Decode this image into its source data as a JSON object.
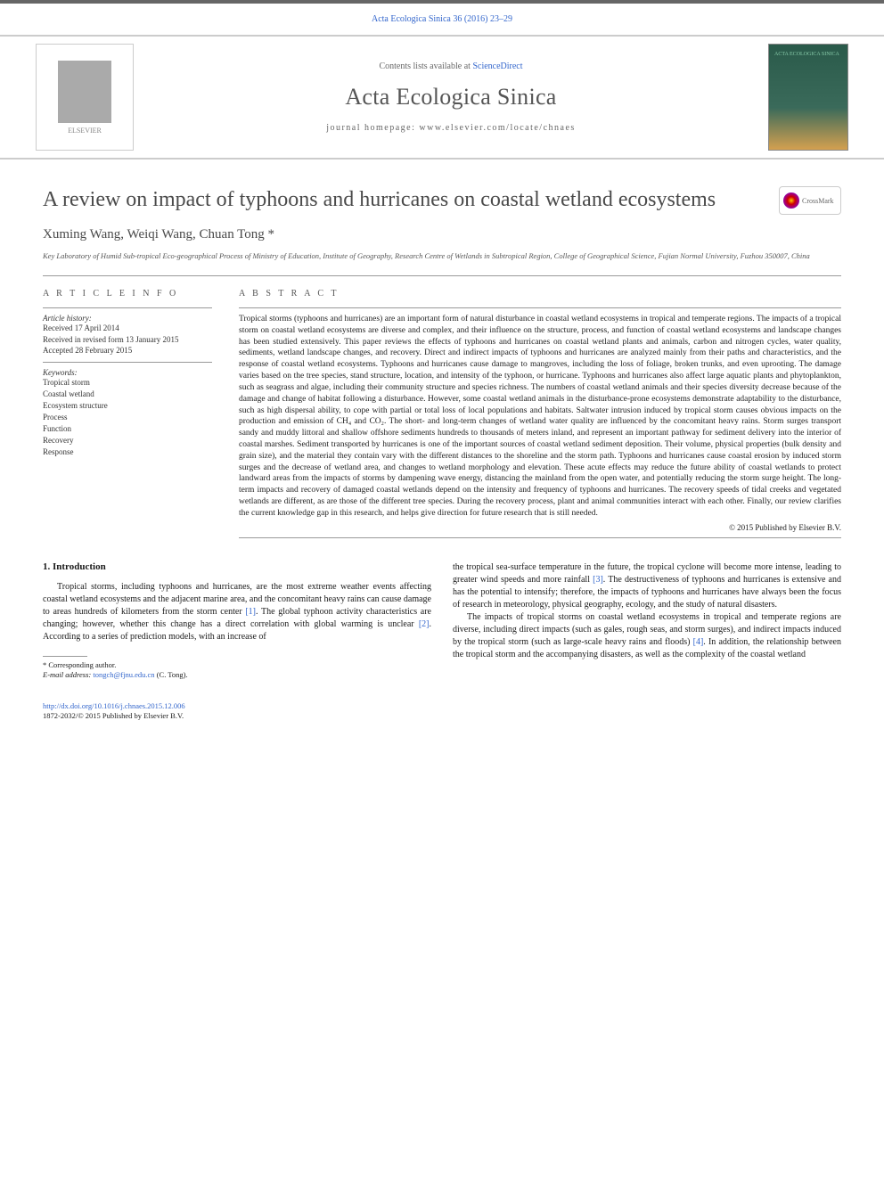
{
  "header": {
    "citation": "Acta Ecologica Sinica 36 (2016) 23–29",
    "contents_prefix": "Contents lists available at ",
    "contents_link": "ScienceDirect",
    "journal_name": "Acta Ecologica Sinica",
    "homepage_label": "journal homepage: www.elsevier.com/locate/chnaes",
    "elsevier": "ELSEVIER",
    "cover_text": "ACTA ECOLOGICA SINICA"
  },
  "article": {
    "title": "A review on impact of typhoons and hurricanes on coastal wetland ecosystems",
    "crossmark": "CrossMark",
    "authors": "Xuming Wang, Weiqi Wang, Chuan Tong *",
    "affiliation": "Key Laboratory of Humid Sub-tropical Eco-geographical Process of Ministry of Education, Institute of Geography, Research Centre of Wetlands in Subtropical Region, College of Geographical Science, Fujian Normal University, Fuzhou 350007, China"
  },
  "info": {
    "heading": "A R T I C L E   I N F O",
    "history_label": "Article history:",
    "received": "Received 17 April 2014",
    "revised": "Received in revised form 13 January 2015",
    "accepted": "Accepted 28 February 2015",
    "keywords_label": "Keywords:",
    "keywords": [
      "Tropical storm",
      "Coastal wetland",
      "Ecosystem structure",
      "Process",
      "Function",
      "Recovery",
      "Response"
    ]
  },
  "abstract": {
    "heading": "A B S T R A C T",
    "text": "Tropical storms (typhoons and hurricanes) are an important form of natural disturbance in coastal wetland ecosystems in tropical and temperate regions. The impacts of a tropical storm on coastal wetland ecosystems are diverse and complex, and their influence on the structure, process, and function of coastal wetland ecosystems and landscape changes has been studied extensively. This paper reviews the effects of typhoons and hurricanes on coastal wetland plants and animals, carbon and nitrogen cycles, water quality, sediments, wetland landscape changes, and recovery. Direct and indirect impacts of typhoons and hurricanes are analyzed mainly from their paths and characteristics, and the response of coastal wetland ecosystems. Typhoons and hurricanes cause damage to mangroves, including the loss of foliage, broken trunks, and even uprooting. The damage varies based on the tree species, stand structure, location, and intensity of the typhoon, or hurricane. Typhoons and hurricanes also affect large aquatic plants and phytoplankton, such as seagrass and algae, including their community structure and species richness. The numbers of coastal wetland animals and their species diversity decrease because of the damage and change of habitat following a disturbance. However, some coastal wetland animals in the disturbance-prone ecosystems demonstrate adaptability to the disturbance, such as high dispersal ability, to cope with partial or total loss of local populations and habitats. Saltwater intrusion induced by tropical storm causes obvious impacts on the production and emission of CH₄ and CO₂. The short- and long-term changes of wetland water quality are influenced by the concomitant heavy rains. Storm surges transport sandy and muddy littoral and shallow offshore sediments hundreds to thousands of meters inland, and represent an important pathway for sediment delivery into the interior of coastal marshes. Sediment transported by hurricanes is one of the important sources of coastal wetland sediment deposition. Their volume, physical properties (bulk density and grain size), and the material they contain vary with the different distances to the shoreline and the storm path. Typhoons and hurricanes cause coastal erosion by induced storm surges and the decrease of wetland area, and changes to wetland morphology and elevation. These acute effects may reduce the future ability of coastal wetlands to protect landward areas from the impacts of storms by dampening wave energy, distancing the mainland from the open water, and potentially reducing the storm surge height. The long-term impacts and recovery of damaged coastal wetlands depend on the intensity and frequency of typhoons and hurricanes. The recovery speeds of tidal creeks and vegetated wetlands are different, as are those of the different tree species. During the recovery process, plant and animal communities interact with each other. Finally, our review clarifies the current knowledge gap in this research, and helps give direction for future research that is still needed.",
    "copyright": "© 2015 Published by Elsevier B.V."
  },
  "body": {
    "intro_heading": "1. Introduction",
    "p1a": "Tropical storms, including typhoons and hurricanes, are the most extreme weather events affecting coastal wetland ecosystems and the adjacent marine area, and the concomitant heavy rains can cause damage to areas hundreds of kilometers from the storm center ",
    "ref1": "[1]",
    "p1b": ". The global typhoon activity characteristics are changing; however, whether this change has a direct correlation with global warming is unclear ",
    "ref2": "[2]",
    "p1c": ". According to a series of prediction models, with an increase of",
    "p2a": "the tropical sea-surface temperature in the future, the tropical cyclone will become more intense, leading to greater wind speeds and more rainfall ",
    "ref3": "[3]",
    "p2b": ". The destructiveness of typhoons and hurricanes is extensive and has the potential to intensify; therefore, the impacts of typhoons and hurricanes have always been the focus of research in meteorology, physical geography, ecology, and the study of natural disasters.",
    "p3a": "The impacts of tropical storms on coastal wetland ecosystems in tropical and temperate regions are diverse, including direct impacts (such as gales, rough seas, and storm surges), and indirect impacts induced by the tropical storm (such as large-scale heavy rains and floods) ",
    "ref4": "[4]",
    "p3b": ". In addition, the relationship between the tropical storm and the accompanying disasters, as well as the complexity of the coastal wetland"
  },
  "footnote": {
    "corr": "* Corresponding author.",
    "email_label": "E-mail address: ",
    "email": "tongch@fjnu.edu.cn",
    "email_suffix": " (C. Tong)."
  },
  "footer": {
    "doi": "http://dx.doi.org/10.1016/j.chnaes.2015.12.006",
    "issn": "1872-2032/© 2015 Published by Elsevier B.V."
  },
  "colors": {
    "link": "#3366cc",
    "text": "#1a1a1a",
    "muted": "#666666"
  }
}
